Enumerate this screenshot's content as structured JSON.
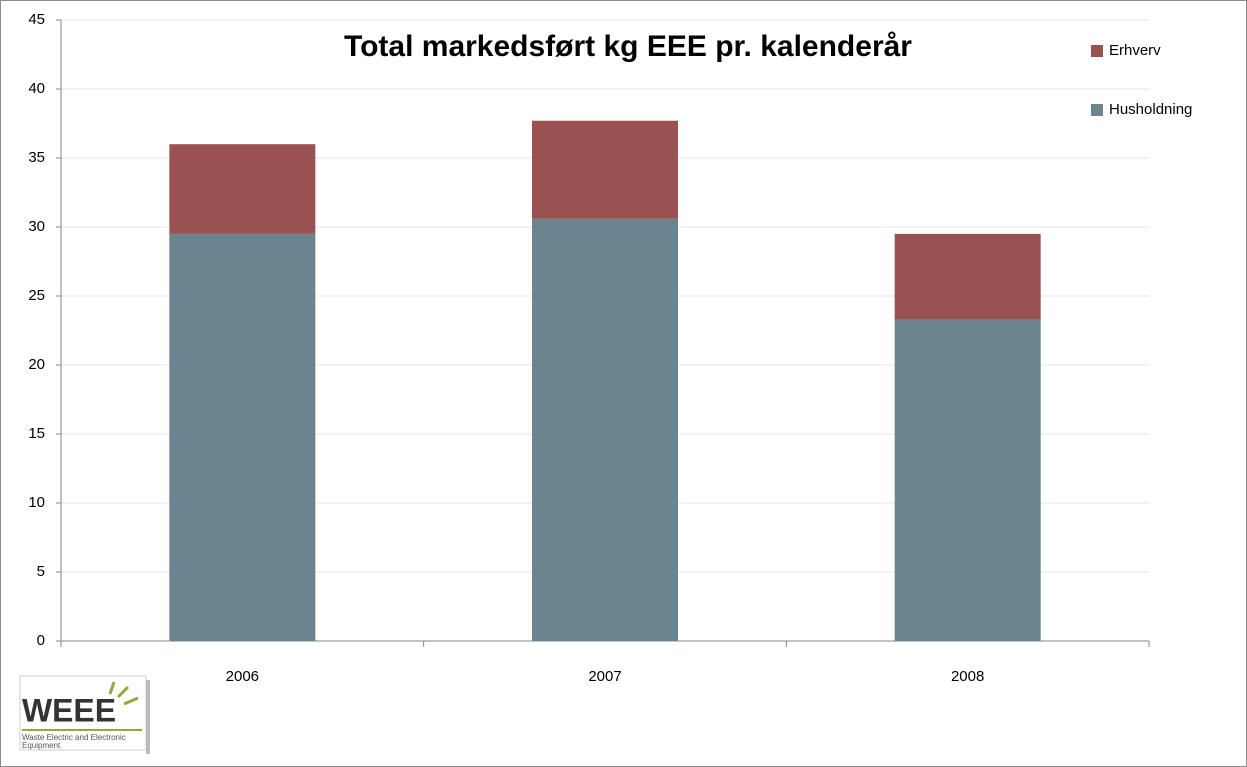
{
  "chart_data": {
    "type": "stacked_bar",
    "title": "Total markedsført  kg EEE pr. kalenderår",
    "categories": [
      "2006",
      "2007",
      "2008"
    ],
    "series": [
      {
        "name": "Husholdning",
        "color": "#6b8490",
        "values": [
          29.5,
          30.6,
          23.3
        ]
      },
      {
        "name": "Erhverv",
        "color": "#9a5151",
        "values": [
          6.5,
          7.1,
          6.2
        ]
      }
    ],
    "ylim": [
      0,
      45
    ],
    "yticks": [
      0,
      5,
      10,
      15,
      20,
      25,
      30,
      35,
      40,
      45
    ],
    "grid": true,
    "legend": "right"
  },
  "logo": {
    "title": "WEEE",
    "subtitle_lines": [
      "Waste Electric and Electronic",
      "Equipment"
    ]
  }
}
